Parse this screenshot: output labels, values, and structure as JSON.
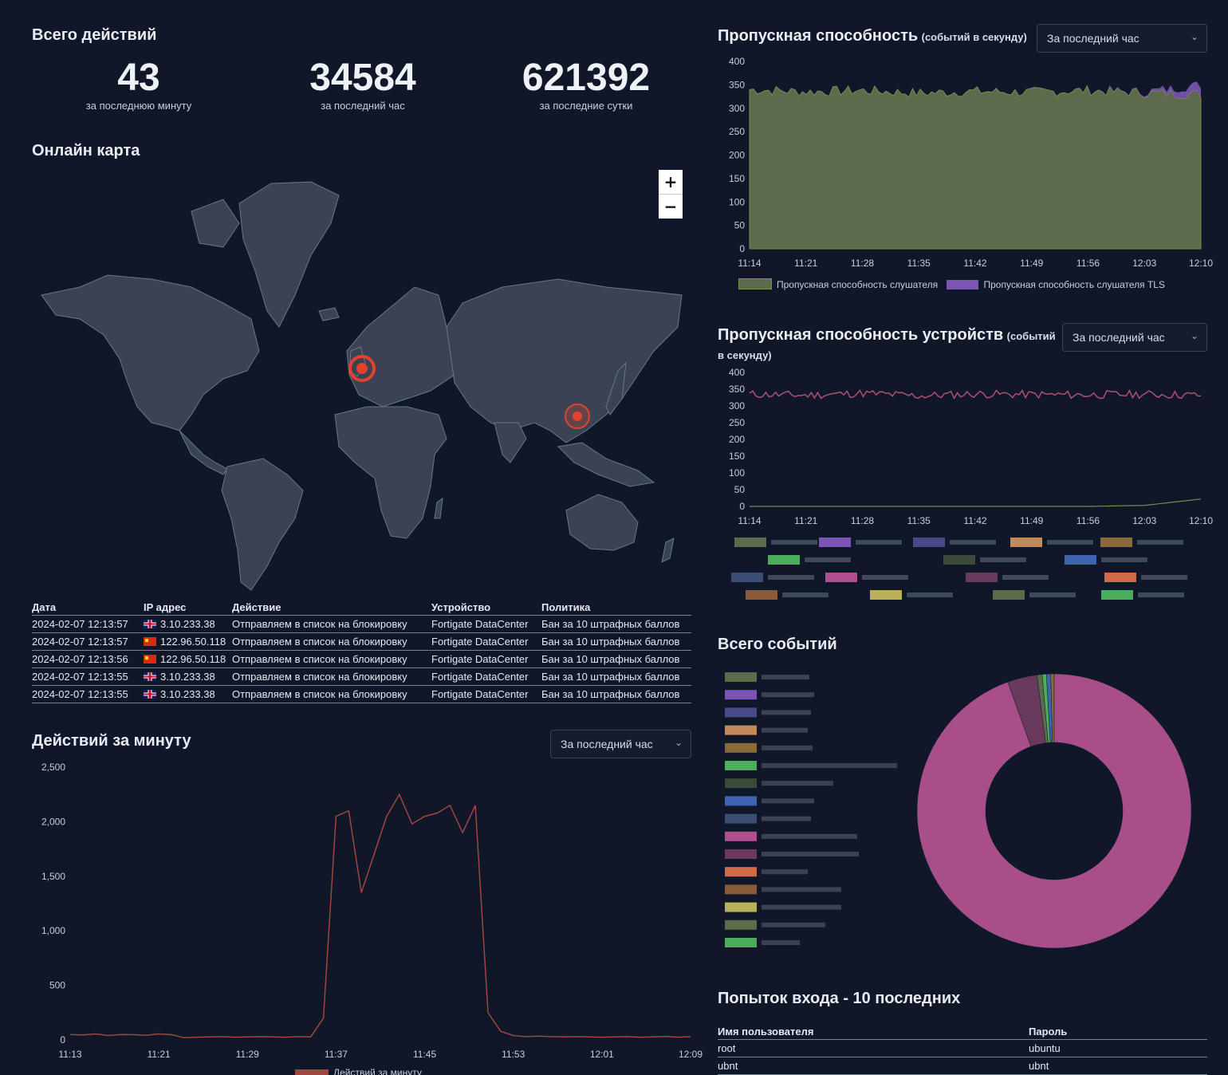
{
  "totals": {
    "title": "Всего действий",
    "stats": [
      {
        "value": "43",
        "label": "за последнюю минуту"
      },
      {
        "value": "34584",
        "label": "за последний час"
      },
      {
        "value": "621392",
        "label": "за последние сутки"
      }
    ]
  },
  "map": {
    "title": "Онлайн карта",
    "zoom_in": "+",
    "zoom_out": "−"
  },
  "actions_table": {
    "headers": [
      "Дата",
      "IP адрес",
      "Действие",
      "Устройство",
      "Политика"
    ],
    "rows": [
      {
        "date": "2024-02-07 12:13:57",
        "flag": "uk",
        "ip": "3.10.233.38",
        "action": "Отправляем в список на блокировку",
        "device": "Fortigate DataCenter",
        "policy": "Бан за 10 штрафных баллов"
      },
      {
        "date": "2024-02-07 12:13:57",
        "flag": "cn",
        "ip": "122.96.50.118",
        "action": "Отправляем в список на блокировку",
        "device": "Fortigate DataCenter",
        "policy": "Бан за 10 штрафных баллов"
      },
      {
        "date": "2024-02-07 12:13:56",
        "flag": "cn",
        "ip": "122.96.50.118",
        "action": "Отправляем в список на блокировку",
        "device": "Fortigate DataCenter",
        "policy": "Бан за 10 штрафных баллов"
      },
      {
        "date": "2024-02-07 12:13:55",
        "flag": "uk",
        "ip": "3.10.233.38",
        "action": "Отправляем в список на блокировку",
        "device": "Fortigate DataCenter",
        "policy": "Бан за 10 штрафных баллов"
      },
      {
        "date": "2024-02-07 12:13:55",
        "flag": "uk",
        "ip": "3.10.233.38",
        "action": "Отправляем в список на блокировку",
        "device": "Fortigate DataCenter",
        "policy": "Бан за 10 штрафных баллов"
      }
    ]
  },
  "per_minute": {
    "title": "Действий за минуту",
    "select": "За последний час",
    "legend": "Действий за минуту"
  },
  "throughput": {
    "title": "Пропускная способность",
    "title_suffix": "(событий в секунду)",
    "select": "За последний час",
    "legend": [
      "Пропускная способность слушателя",
      "Пропускная способность слушателя TLS"
    ]
  },
  "device_throughput": {
    "title": "Пропускная способность устройств",
    "title_suffix": "(событий",
    "title_suffix2": "в секунду)",
    "select": "За последний час"
  },
  "total_events": {
    "title": "Всего событий"
  },
  "logins": {
    "title": "Попыток входа - 10 последних",
    "headers": [
      "Имя пользователя",
      "Пароль"
    ],
    "rows": [
      {
        "user": "root",
        "password": "ubuntu"
      },
      {
        "user": "ubnt",
        "password": "ubnt"
      }
    ]
  },
  "colors": {
    "background": "#0f1729",
    "area_listener": "#5c6b4a",
    "area_tls": "#7a55b5",
    "line_device": "#b0506f",
    "line_minute": "#a0453f",
    "donut_main": "#a84f8a",
    "marker": "#e0422e"
  },
  "chart_data": [
    {
      "type": "area",
      "title": "Пропускная способность",
      "ylim": [
        0,
        400
      ],
      "yticks": [
        0,
        50,
        100,
        150,
        200,
        250,
        300,
        350,
        400
      ],
      "x": [
        "11:14",
        "11:21",
        "11:28",
        "11:35",
        "11:42",
        "11:49",
        "11:56",
        "12:03",
        "12:10"
      ],
      "series": [
        {
          "name": "Пропускная способность слушателя",
          "values": [
            340,
            335,
            338,
            332,
            336,
            334,
            338,
            333,
            330
          ]
        },
        {
          "name": "Пропускная способность слушателя TLS",
          "values": [
            0,
            0,
            0,
            0,
            0,
            0,
            0,
            2,
            20
          ]
        }
      ]
    },
    {
      "type": "line",
      "title": "Пропускная способность устройств",
      "ylim": [
        0,
        400
      ],
      "yticks": [
        0,
        50,
        100,
        150,
        200,
        250,
        300,
        350,
        400
      ],
      "x": [
        "11:14",
        "11:21",
        "11:28",
        "11:35",
        "11:42",
        "11:49",
        "11:56",
        "12:03",
        "12:10"
      ],
      "series": [
        {
          "values": [
            335,
            332,
            338,
            330,
            336,
            334,
            333,
            335,
            332
          ]
        },
        {
          "values": [
            0,
            0,
            0,
            0,
            0,
            0,
            0,
            3,
            22
          ]
        }
      ]
    },
    {
      "type": "line",
      "title": "Действий за минуту",
      "ylim": [
        0,
        2500
      ],
      "yticks": [
        0,
        500,
        1000,
        1500,
        2000,
        2500
      ],
      "ytick_labels": [
        "0",
        "500",
        "1,000",
        "1,500",
        "2,000",
        "2,500"
      ],
      "x_labels": [
        "11:13",
        "11:21",
        "11:29",
        "11:37",
        "11:45",
        "11:53",
        "12:01",
        "12:09"
      ],
      "series": [
        {
          "name": "Действий за минуту",
          "values": [
            50,
            45,
            55,
            40,
            50,
            48,
            42,
            55,
            48,
            20,
            25,
            28,
            30,
            25,
            28,
            30,
            27,
            25,
            30,
            28,
            200,
            2050,
            2100,
            1350,
            1700,
            2050,
            2250,
            1980,
            2050,
            2080,
            2150,
            1900,
            2150,
            250,
            80,
            40,
            30,
            35,
            30,
            28,
            30,
            27,
            25,
            28,
            30,
            25,
            28,
            32,
            25,
            30
          ]
        }
      ]
    },
    {
      "type": "pie",
      "title": "Всего событий",
      "values": [
        94.5,
        3.5,
        0.6,
        0.5,
        0.5,
        0.4
      ]
    }
  ]
}
